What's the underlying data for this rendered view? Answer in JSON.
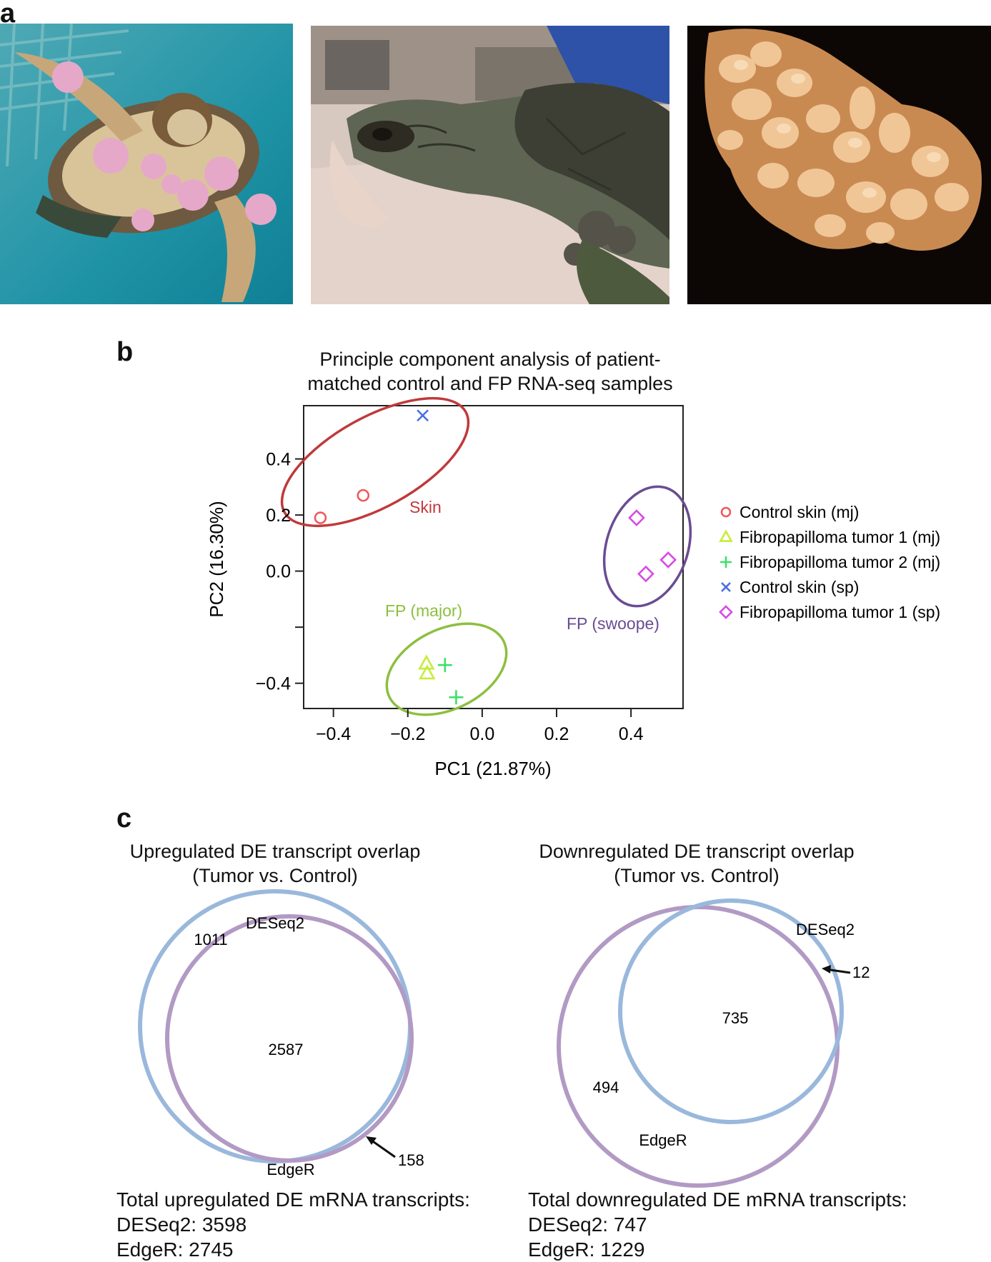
{
  "panel_a": {
    "label": "a",
    "photos": [
      {
        "icon": "turtle-in-tank-photo"
      },
      {
        "icon": "turtle-on-towel-photo"
      },
      {
        "icon": "tumor-closeup-photo"
      }
    ]
  },
  "panel_b": {
    "label": "b",
    "title_line1": "Principle component analysis of patient-",
    "title_line2": "matched control and FP RNA-seq samples",
    "ellipse_labels": {
      "skin": "Skin",
      "fp_major": "FP (major)",
      "fp_swoope": "FP (swoope)"
    }
  },
  "panel_c": {
    "label": "c",
    "up": {
      "title_line1": "Upregulated DE transcript overlap",
      "title_line2": "(Tumor vs. Control)",
      "deseq2_label": "DESeq2",
      "edger_label": "EdgeR",
      "deseq2_only": "1011",
      "overlap": "2587",
      "edger_only": "158",
      "total_line1": "Total upregulated DE mRNA transcripts:",
      "total_line2": "DESeq2: 3598",
      "total_line3": "EdgeR: 2745"
    },
    "down": {
      "title_line1": "Downregulated DE transcript overlap",
      "title_line2": "(Tumor vs. Control)",
      "deseq2_label": "DESeq2",
      "edger_label": "EdgeR",
      "deseq2_only": "12",
      "overlap": "735",
      "edger_only": "494",
      "total_line1": "Total downregulated DE mRNA transcripts:",
      "total_line2": "DESeq2: 747",
      "total_line3": "EdgeR: 1229"
    },
    "colors": {
      "deseq2": "#9ab8dc",
      "edger": "#b29ac4"
    }
  },
  "chart_data": {
    "type": "scatter",
    "xlabel": "PC1 (21.87%)",
    "ylabel": "PC2 (16.30%)",
    "xlim": [
      -0.48,
      0.54
    ],
    "ylim": [
      -0.49,
      0.59
    ],
    "xticks": [
      -0.4,
      -0.2,
      0.0,
      0.2,
      0.4
    ],
    "xtick_labels": [
      "−0.4",
      "−0.2",
      "0.0",
      "0.2",
      "0.4"
    ],
    "yticks": [
      -0.4,
      -0.2,
      0.0,
      0.2,
      0.4
    ],
    "ytick_labels": [
      "−0.4",
      "",
      "0.0",
      "0.2",
      "0.4"
    ],
    "legend_position": "right",
    "grid": false,
    "series": [
      {
        "name": "Control skin (mj)",
        "marker": "circle",
        "color": "#ef5a5a",
        "points": [
          [
            -0.435,
            0.19
          ],
          [
            -0.32,
            0.27
          ]
        ]
      },
      {
        "name": "Fibropapilloma tumor 1 (mj)",
        "marker": "triangle",
        "color": "#c8ec3c",
        "points": [
          [
            -0.15,
            -0.33
          ],
          [
            -0.148,
            -0.365
          ]
        ]
      },
      {
        "name": "Fibropapilloma tumor 2 (mj)",
        "marker": "plus",
        "color": "#3ee06a",
        "points": [
          [
            -0.1,
            -0.335
          ],
          [
            -0.07,
            -0.45
          ]
        ]
      },
      {
        "name": "Control skin (sp)",
        "marker": "x",
        "color": "#4a6ee0",
        "points": [
          [
            -0.16,
            0.555
          ]
        ]
      },
      {
        "name": "Fibropapilloma tumor 1 (sp)",
        "marker": "diamond",
        "color": "#d64be6",
        "points": [
          [
            0.415,
            0.19
          ],
          [
            0.44,
            -0.01
          ],
          [
            0.5,
            0.04
          ]
        ]
      }
    ],
    "ellipses": [
      {
        "label_key": "skin",
        "color": "#c0393b"
      },
      {
        "label_key": "fp_major",
        "color": "#8cbf3f"
      },
      {
        "label_key": "fp_swoope",
        "color": "#6a4c93"
      }
    ]
  }
}
